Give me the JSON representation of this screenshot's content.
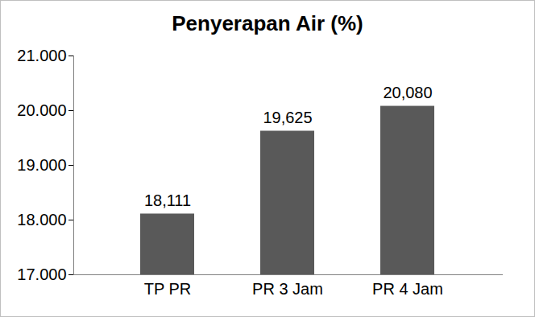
{
  "chart_data": {
    "type": "bar",
    "title": "Penyerapan Air (%)",
    "categories": [
      "TP PR",
      "PR 3 Jam",
      "PR 4 Jam"
    ],
    "values": [
      18.111,
      19.625,
      20.08
    ],
    "value_labels": [
      "18,111",
      "19,625",
      "20,080"
    ],
    "data_labels": true,
    "color": "#595959",
    "ylim": [
      17,
      21
    ],
    "yticks": [
      {
        "value": 17,
        "label": "17.000"
      },
      {
        "value": 18,
        "label": "18.000"
      },
      {
        "value": 19,
        "label": "19.000"
      },
      {
        "value": 20,
        "label": "20.000"
      },
      {
        "value": 21,
        "label": "21.000"
      }
    ],
    "grid": false
  }
}
